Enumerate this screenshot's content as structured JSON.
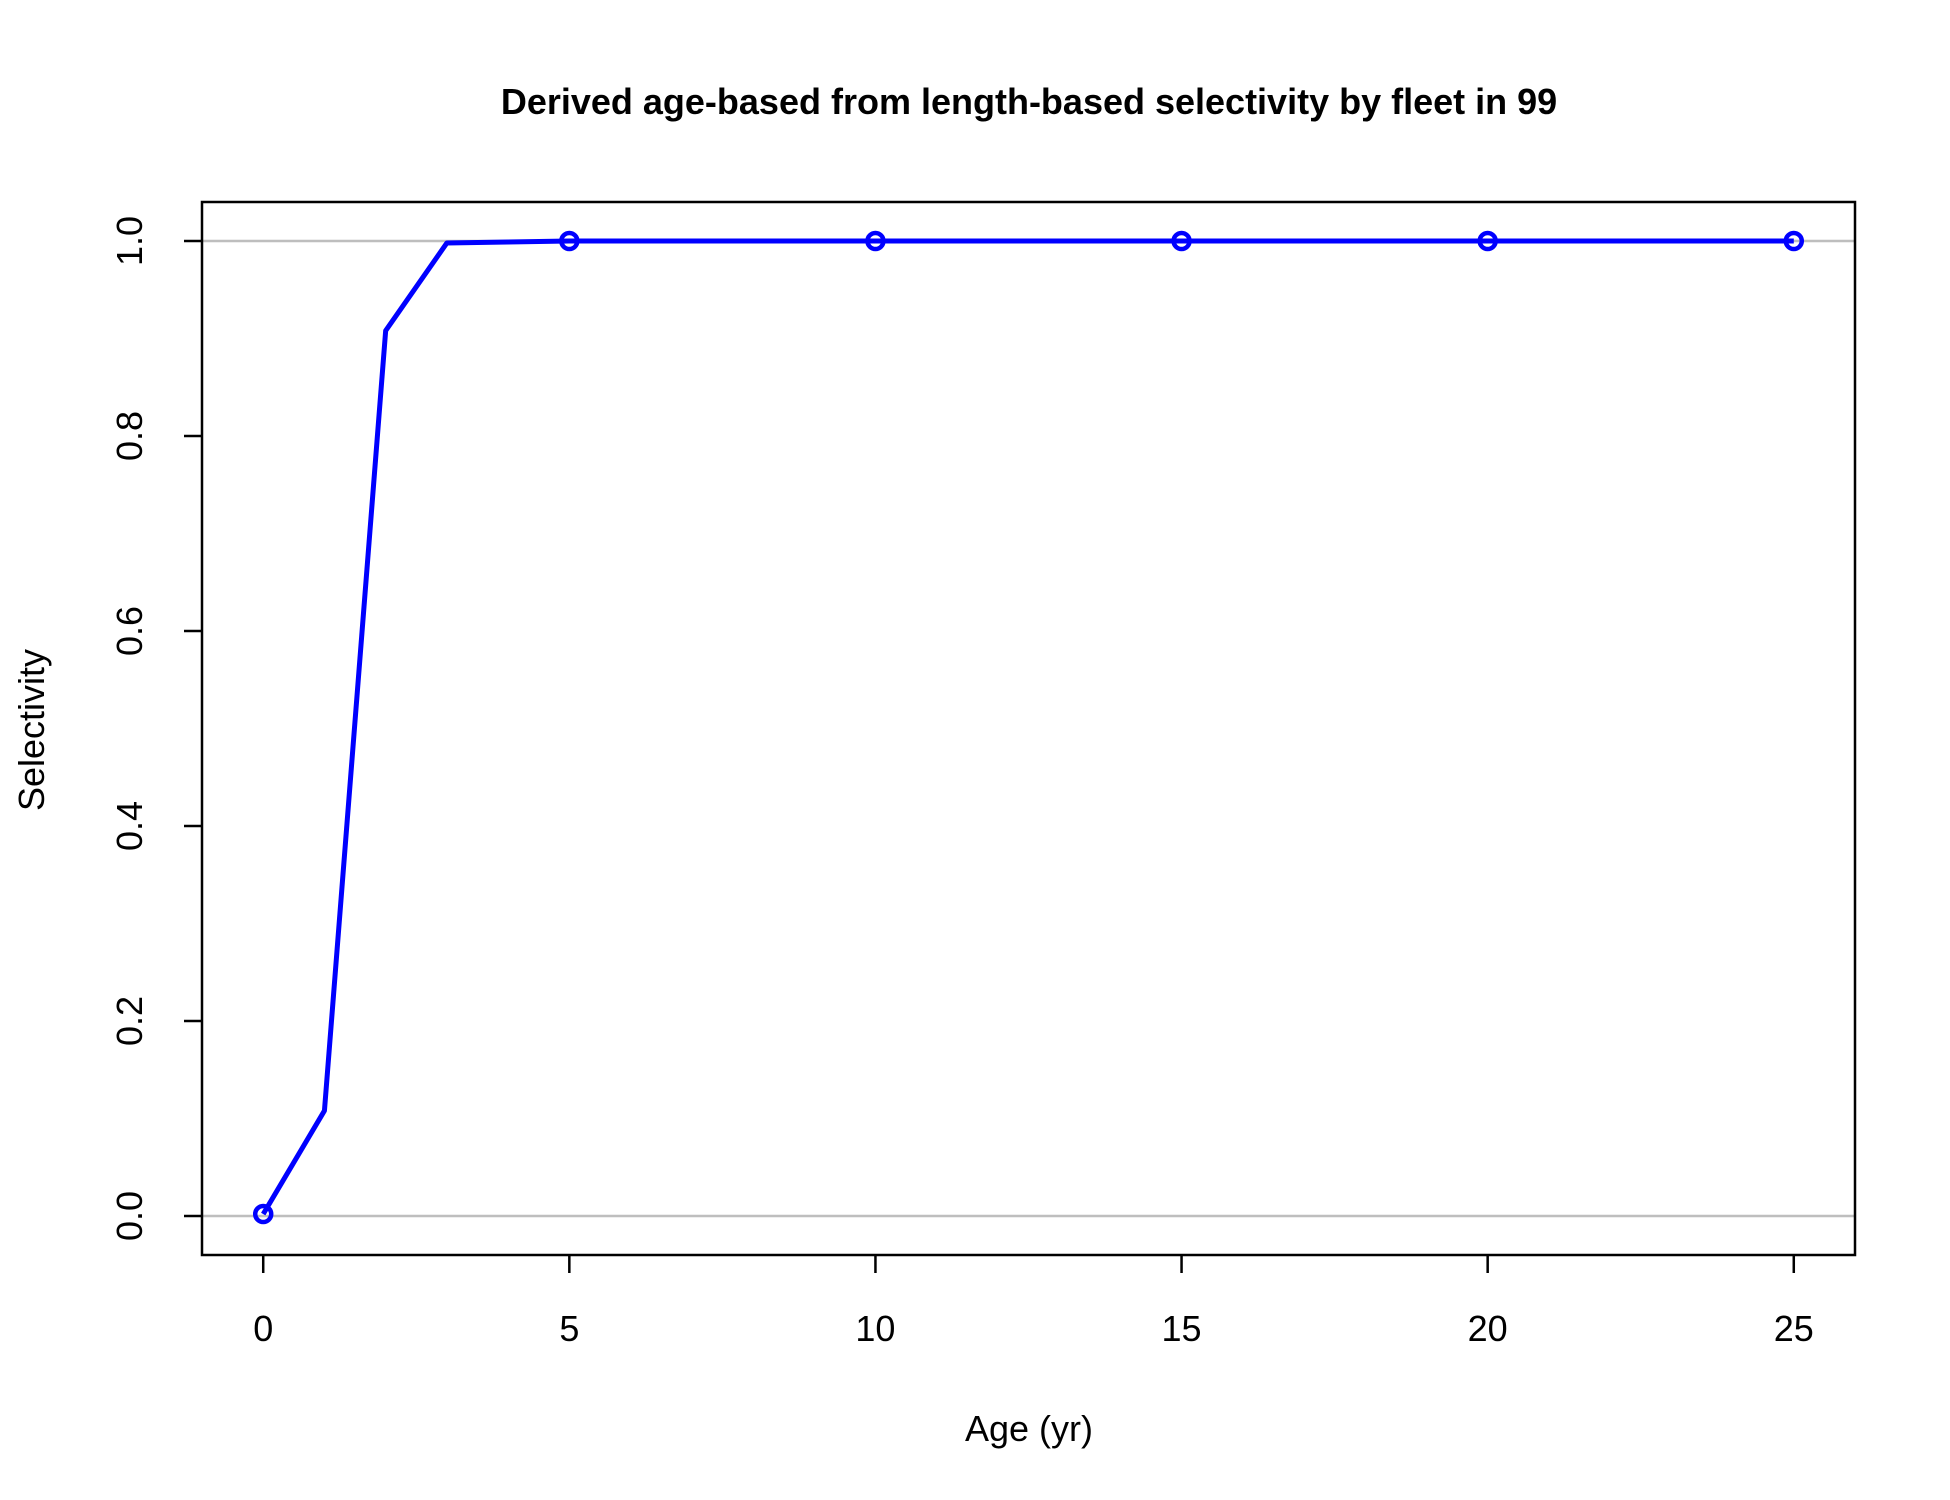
{
  "chart_data": {
    "type": "line",
    "title": "Derived age-based from length-based selectivity by fleet in 99",
    "xlabel": "Age (yr)",
    "ylabel": "Selectivity",
    "xlim": [
      -1,
      26
    ],
    "ylim": [
      -0.04,
      1.04
    ],
    "x_ticks": [
      0,
      5,
      10,
      15,
      20,
      25
    ],
    "x_tick_labels": [
      "0",
      "5",
      "10",
      "15",
      "20",
      "25"
    ],
    "y_ticks": [
      0.0,
      0.2,
      0.4,
      0.6,
      0.8,
      1.0
    ],
    "y_tick_labels": [
      "0.0",
      "0.2",
      "0.4",
      "0.6",
      "0.8",
      "1.0"
    ],
    "reference_lines_y": [
      0,
      1
    ],
    "grid": false,
    "series": [
      {
        "color": "#0000ff",
        "x": [
          0,
          1,
          2,
          3,
          4,
          5,
          6,
          7,
          8,
          9,
          10,
          11,
          12,
          13,
          14,
          15,
          16,
          17,
          18,
          19,
          20,
          21,
          22,
          23,
          24,
          25
        ],
        "y": [
          0.002,
          0.108,
          0.908,
          0.998,
          0.999,
          1.0,
          1.0,
          1.0,
          1.0,
          1.0,
          1.0,
          1.0,
          1.0,
          1.0,
          1.0,
          1.0,
          1.0,
          1.0,
          1.0,
          1.0,
          1.0,
          1.0,
          1.0,
          1.0,
          1.0,
          1.0
        ],
        "marker_x": [
          0,
          5,
          10,
          15,
          20,
          25
        ]
      }
    ],
    "colors": {
      "series": "#0000ff",
      "reference_line": "#bebebe",
      "axes": "#000000"
    }
  }
}
